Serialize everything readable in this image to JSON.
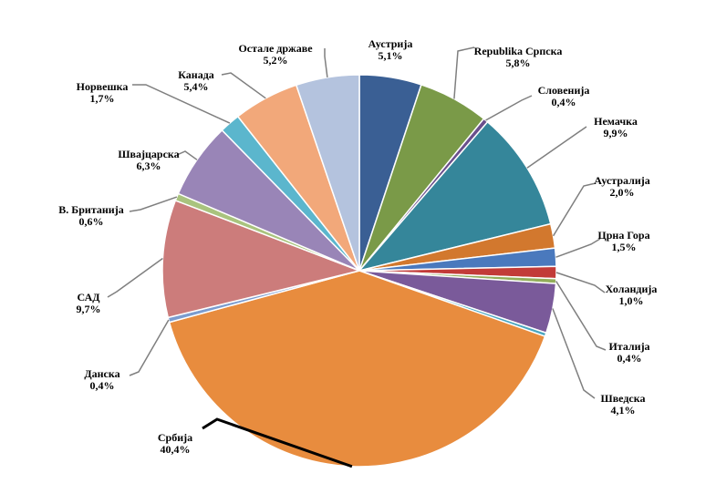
{
  "chart_data": {
    "type": "pie",
    "title": "",
    "slices": [
      {
        "label": "Аустрија",
        "value": 5.1,
        "display": "5,1%",
        "color": "#3a5f94"
      },
      {
        "label": "Republika Српска",
        "value": 5.8,
        "display": "5,8%",
        "color": "#7a9a48"
      },
      {
        "label": "Словенија",
        "value": 0.4,
        "display": "0,4%",
        "color": "#6a4f8c"
      },
      {
        "label": "Немачка",
        "value": 9.9,
        "display": "9,9%",
        "color": "#35869a"
      },
      {
        "label": "Аустралија",
        "value": 2.0,
        "display": "2,0%",
        "color": "#d2782e"
      },
      {
        "label": "Црна Гора",
        "value": 1.5,
        "display": "1,5%",
        "color": "#4a79bd"
      },
      {
        "label": "Холандија",
        "value": 1.0,
        "display": "1,0%",
        "color": "#c23b38"
      },
      {
        "label": "Италија",
        "value": 0.4,
        "display": "0,4%",
        "color": "#92ad5a"
      },
      {
        "label": "Шведска",
        "value": 4.1,
        "display": "4,1%",
        "color": "#7a5a9a"
      },
      {
        "label": "",
        "value": 0.3,
        "display": "",
        "color": "#4aa5bf"
      },
      {
        "label": "Србија",
        "value": 40.4,
        "display": "40,4%",
        "color": "#e88c3e"
      },
      {
        "label": "Данска",
        "value": 0.4,
        "display": "0,4%",
        "color": "#7b9ccf"
      },
      {
        "label": "САД",
        "value": 9.7,
        "display": "9,7%",
        "color": "#cc7c7b"
      },
      {
        "label": "В. Британија",
        "value": 0.6,
        "display": "0,6%",
        "color": "#a9c37e"
      },
      {
        "label": "Швајцарска",
        "value": 6.3,
        "display": "6,3%",
        "color": "#9985b7"
      },
      {
        "label": "Норвешка",
        "value": 1.7,
        "display": "1,7%",
        "color": "#5bb6cd"
      },
      {
        "label": "Канада",
        "value": 5.4,
        "display": "5,4%",
        "color": "#f2a87a"
      },
      {
        "label": "Остале државе",
        "value": 5.2,
        "display": "5,2%",
        "color": "#b4c3de"
      }
    ],
    "legend": "none",
    "labels": "outside-with-leader-lines"
  }
}
